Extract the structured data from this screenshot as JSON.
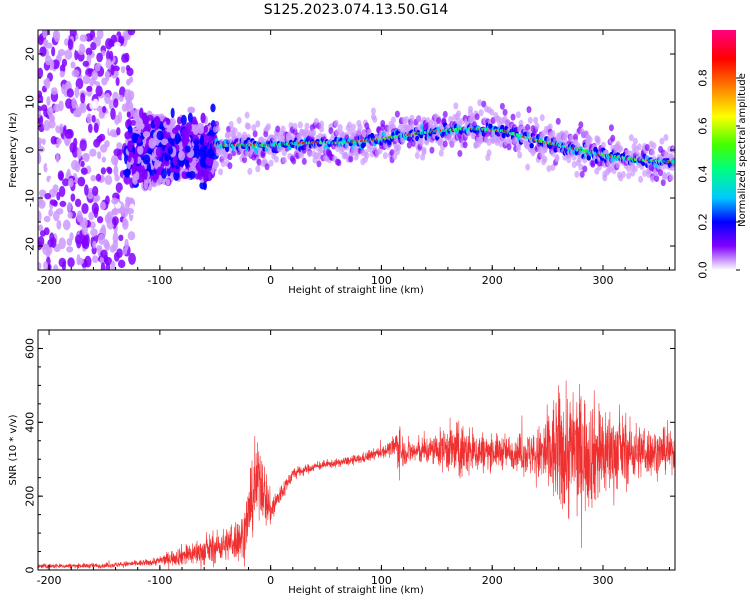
{
  "title": "S125.2023.074.13.50.G14",
  "chart_data": [
    {
      "type": "heatmap",
      "xlabel": "Height of straight line (km)",
      "ylabel": "Frequency (Hz)",
      "xlim": [
        -210,
        365
      ],
      "ylim": [
        -25,
        25
      ],
      "xticks": [
        -200,
        -100,
        0,
        100,
        200,
        300
      ],
      "yticks": [
        -20,
        -10,
        0,
        10,
        20
      ],
      "colorbar": {
        "label": "Normalized spectral amplitude",
        "range": [
          0,
          1
        ],
        "ticks": [
          0.0,
          0.2,
          0.4,
          0.6,
          0.8
        ],
        "colors": [
          "#ffffff",
          "#cc99ff",
          "#8000ff",
          "#0000ff",
          "#00c8ff",
          "#00ff80",
          "#40ff00",
          "#ffff00",
          "#ff8000",
          "#ff0000",
          "#ff0080"
        ]
      },
      "ridge": {
        "x": [
          -50,
          -30,
          0,
          30,
          60,
          90,
          120,
          150,
          180,
          210,
          240,
          270,
          300,
          330,
          365
        ],
        "frequency": [
          1,
          1,
          1,
          1.5,
          1.5,
          2,
          3,
          4,
          4.5,
          4,
          2,
          0.5,
          -1,
          -2,
          -2.5
        ]
      },
      "noise_region": {
        "x": [
          -210,
          -50
        ],
        "frequency_spread": [
          -25,
          25
        ]
      }
    },
    {
      "type": "line",
      "xlabel": "Height of straight line (km)",
      "ylabel": "SNR (10 * v/v)",
      "xlim": [
        -210,
        365
      ],
      "ylim": [
        0,
        650
      ],
      "xticks": [
        -200,
        -100,
        0,
        100,
        200,
        300
      ],
      "yticks": [
        0,
        200,
        400,
        600
      ],
      "color": "#f03030",
      "envelope": {
        "x": [
          -210,
          -150,
          -110,
          -100,
          -80,
          -60,
          -40,
          -25,
          -20,
          -10,
          -5,
          0,
          10,
          20,
          40,
          60,
          80,
          100,
          110,
          115,
          118,
          120,
          130,
          150,
          160,
          170,
          180,
          200,
          220,
          240,
          250,
          260,
          270,
          280,
          300,
          320,
          340,
          365
        ],
        "mean": [
          10,
          12,
          20,
          25,
          40,
          50,
          70,
          90,
          150,
          260,
          200,
          160,
          210,
          260,
          280,
          290,
          300,
          320,
          330,
          340,
          320,
          320,
          320,
          325,
          330,
          320,
          320,
          320,
          320,
          310,
          315,
          320,
          320,
          320,
          320,
          320,
          320,
          320
        ],
        "spread": [
          6,
          6,
          8,
          12,
          25,
          35,
          40,
          60,
          80,
          90,
          80,
          40,
          25,
          15,
          10,
          10,
          12,
          15,
          20,
          60,
          60,
          30,
          30,
          40,
          60,
          70,
          60,
          40,
          40,
          60,
          110,
          150,
          170,
          150,
          120,
          80,
          60,
          45
        ]
      }
    }
  ]
}
